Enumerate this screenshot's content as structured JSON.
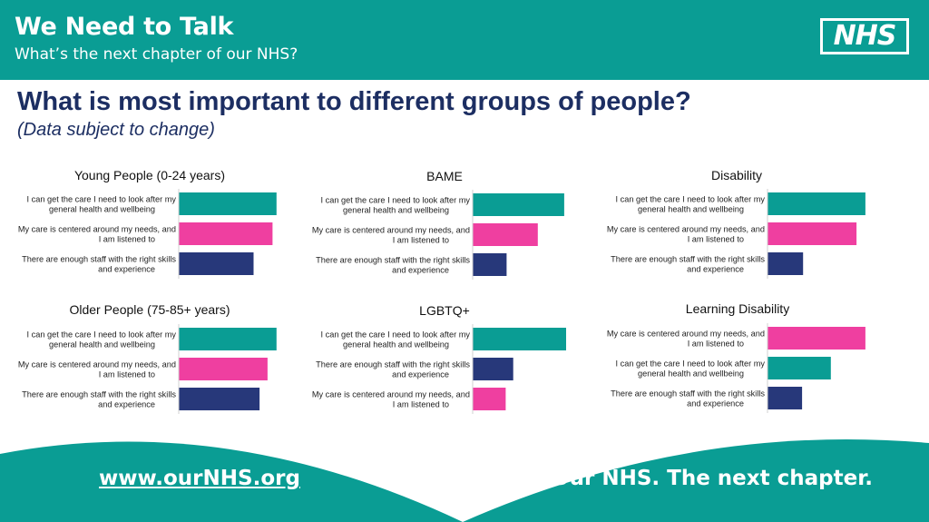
{
  "header": {
    "title": "We Need to Talk",
    "subtitle": "What’s the next chapter of our NHS?",
    "logo_text": "NHS"
  },
  "page": {
    "title": "What is most important to different groups of people?",
    "subtitle": "(Data subject to change)"
  },
  "footer": {
    "link": "www.ourNHS.org",
    "tagline": "Our NHS. The next chapter."
  },
  "colors": {
    "teal": "#0a9d94",
    "pink": "#ef3fa0",
    "navy": "#27387a",
    "title_blue": "#1c2e62"
  },
  "chart_data": [
    {
      "type": "bar",
      "orientation": "horizontal",
      "title": "Young People (0-24 years)",
      "categories": [
        "I can get the care I need to look after my general health and wellbeing",
        "My care is centered around my needs, and I am listened to",
        "There are enough staff with the right skills and experience"
      ],
      "values": [
        0.98,
        0.94,
        0.75
      ],
      "colors": [
        "teal",
        "pink",
        "navy"
      ]
    },
    {
      "type": "bar",
      "orientation": "horizontal",
      "title": "BAME",
      "categories": [
        "I can get the care I need to look after my general health and wellbeing",
        "My care is centered around my needs, and I am listened to",
        "There are enough staff with the right skills and experience"
      ],
      "values": [
        0.97,
        0.69,
        0.36
      ],
      "colors": [
        "teal",
        "pink",
        "navy"
      ]
    },
    {
      "type": "bar",
      "orientation": "horizontal",
      "title": "Disability",
      "categories": [
        "I can get the care I need to look after my general health and wellbeing",
        "My care is centered around my needs, and I am listened to",
        "There are enough staff with the right skills and experience"
      ],
      "values": [
        0.99,
        0.9,
        0.36
      ],
      "colors": [
        "teal",
        "pink",
        "navy"
      ]
    },
    {
      "type": "bar",
      "orientation": "horizontal",
      "title": "Older People (75-85+ years)",
      "categories": [
        "I can get the care I need to look after my general health and wellbeing",
        "My care is centered around my needs, and I am listened to",
        "There are enough staff with the right skills and experience"
      ],
      "values": [
        0.98,
        0.89,
        0.81
      ],
      "colors": [
        "teal",
        "pink",
        "navy"
      ]
    },
    {
      "type": "bar",
      "orientation": "horizontal",
      "title": "LGBTQ+",
      "categories": [
        "I can get the care I need to look after my general health and wellbeing",
        "There are enough staff with the right skills and experience",
        "My care is centered around my needs, and I am listened to"
      ],
      "values": [
        0.99,
        0.43,
        0.35
      ],
      "colors": [
        "teal",
        "navy",
        "pink"
      ]
    },
    {
      "type": "bar",
      "orientation": "horizontal",
      "title": "Learning Disability",
      "categories": [
        "My care is centered around my needs, and I am listened to",
        "I can get the care I need to look after my general health and wellbeing",
        "There are enough staff with the right skills and experience"
      ],
      "values": [
        0.99,
        0.64,
        0.35
      ],
      "colors": [
        "pink",
        "teal",
        "navy"
      ]
    }
  ]
}
